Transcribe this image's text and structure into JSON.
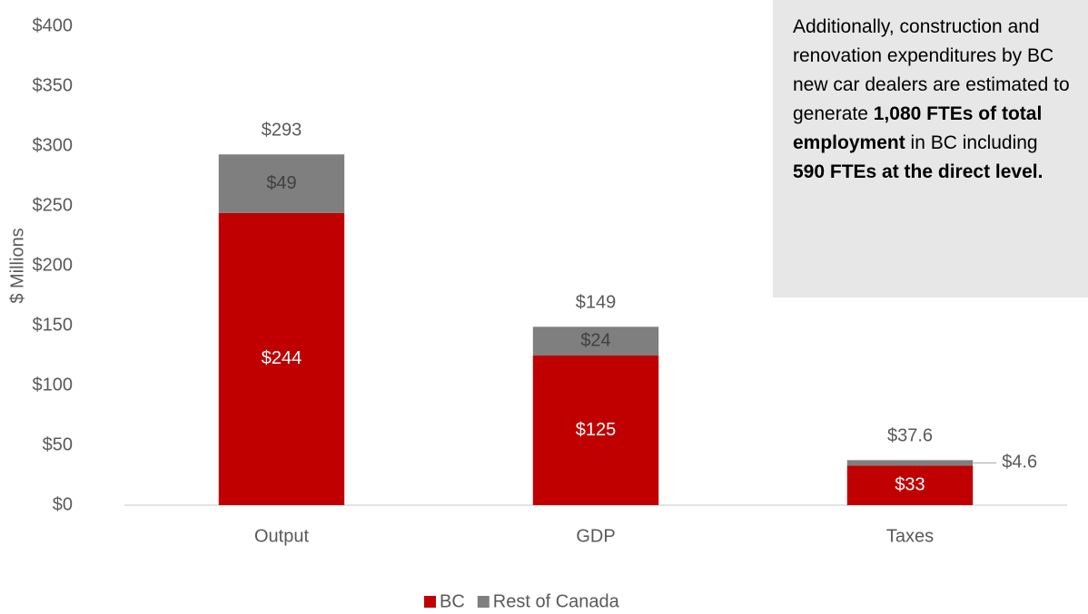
{
  "chart_data": {
    "type": "stacked_bar",
    "y_label": "$ Millions",
    "categories": [
      "Output",
      "GDP",
      "Taxes"
    ],
    "series": [
      {
        "name": "BC",
        "color": "#c00000",
        "values": [
          244,
          125,
          33
        ],
        "value_labels": [
          "$244",
          "$125",
          "$33"
        ]
      },
      {
        "name": "Rest of Canada",
        "color": "#7f7f7f",
        "values": [
          49,
          24,
          4.6
        ],
        "value_labels": [
          "$49",
          "$24",
          "$4.6"
        ]
      }
    ],
    "totals": [
      293,
      149,
      37.6
    ],
    "total_labels": [
      "$293",
      "$149",
      "$37.6"
    ],
    "ylim": [
      0,
      400
    ],
    "yticks": [
      {
        "value": 0,
        "label": "$0"
      },
      {
        "value": 50,
        "label": "$50"
      },
      {
        "value": 100,
        "label": "$100"
      },
      {
        "value": 150,
        "label": "$150"
      },
      {
        "value": 200,
        "label": "$200"
      },
      {
        "value": 250,
        "label": "$250"
      },
      {
        "value": 300,
        "label": "$300"
      },
      {
        "value": 350,
        "label": "$350"
      },
      {
        "value": 400,
        "label": "$400"
      }
    ],
    "grid": false,
    "legend": "bottom",
    "annotation": [
      {
        "text": "Additionally, construction and renovation expenditures by BC new car dealers are estimated to generate ",
        "bold": false
      },
      {
        "text": "1,080 FTEs of total employment",
        "bold": true
      },
      {
        "text": " in BC including ",
        "bold": false
      },
      {
        "text": "590 FTEs at the direct level.",
        "bold": true
      }
    ]
  }
}
